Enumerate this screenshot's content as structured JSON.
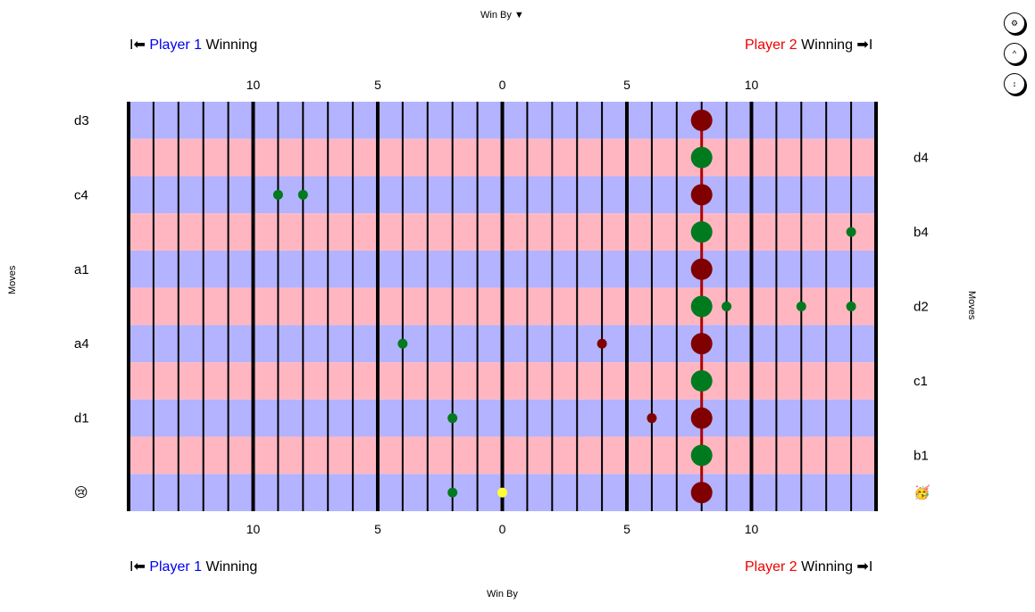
{
  "header": {
    "win_by_top": "Win By ▼",
    "win_by_bottom": "Win By"
  },
  "players": {
    "left_arrow": "I⬅",
    "right_arrow": "➡I",
    "p1_name": "Player 1",
    "p2_name": "Player 2",
    "winning": "Winning"
  },
  "controls": [
    {
      "name": "settings-button",
      "glyph": "⚙"
    },
    {
      "name": "collapse-button",
      "glyph": "^"
    },
    {
      "name": "expand-button",
      "glyph": "↕"
    }
  ],
  "axis": {
    "left_title": "Moves",
    "right_title": "Moves",
    "ticks": [
      {
        "value": -10,
        "label": "10"
      },
      {
        "value": -5,
        "label": "5"
      },
      {
        "value": 0,
        "label": "0"
      },
      {
        "value": 5,
        "label": "5"
      },
      {
        "value": 10,
        "label": "10"
      }
    ],
    "range": [
      -15,
      15
    ]
  },
  "rows": {
    "left_labels": [
      "d3",
      "",
      "c4",
      "",
      "a1",
      "",
      "a4",
      "",
      "d1",
      "",
      "😢"
    ],
    "right_labels": [
      "",
      "d4",
      "",
      "b4",
      "",
      "d2",
      "",
      "c1",
      "",
      "b1",
      "🥳"
    ]
  },
  "colors": {
    "row_p1": "#b3b3ff",
    "row_p2": "#ffb6c1",
    "dot_green": "#007a1f",
    "dot_red": "#800000",
    "dot_yellow": "#ffff33",
    "path": "#b00000"
  },
  "game_path": {
    "x": 8,
    "rows": [
      0,
      1,
      2,
      3,
      4,
      5,
      6,
      7,
      8,
      9,
      10
    ]
  },
  "dots": [
    {
      "row": 0,
      "x": 8,
      "color": "red",
      "size": "large"
    },
    {
      "row": 1,
      "x": 8,
      "color": "green",
      "size": "large"
    },
    {
      "row": 2,
      "x": 8,
      "color": "red",
      "size": "large"
    },
    {
      "row": 2,
      "x": -9,
      "color": "green",
      "size": "small"
    },
    {
      "row": 2,
      "x": -8,
      "color": "green",
      "size": "small"
    },
    {
      "row": 3,
      "x": 8,
      "color": "green",
      "size": "large"
    },
    {
      "row": 3,
      "x": 14,
      "color": "green",
      "size": "small"
    },
    {
      "row": 4,
      "x": 8,
      "color": "red",
      "size": "large"
    },
    {
      "row": 5,
      "x": 8,
      "color": "green",
      "size": "large"
    },
    {
      "row": 5,
      "x": 9,
      "color": "green",
      "size": "small"
    },
    {
      "row": 5,
      "x": 12,
      "color": "green",
      "size": "small"
    },
    {
      "row": 5,
      "x": 14,
      "color": "green",
      "size": "small"
    },
    {
      "row": 6,
      "x": 8,
      "color": "red",
      "size": "large"
    },
    {
      "row": 6,
      "x": -4,
      "color": "green",
      "size": "small"
    },
    {
      "row": 6,
      "x": 4,
      "color": "red",
      "size": "small"
    },
    {
      "row": 7,
      "x": 8,
      "color": "green",
      "size": "large"
    },
    {
      "row": 8,
      "x": 8,
      "color": "red",
      "size": "large"
    },
    {
      "row": 8,
      "x": -2,
      "color": "green",
      "size": "small"
    },
    {
      "row": 8,
      "x": 6,
      "color": "red",
      "size": "small"
    },
    {
      "row": 9,
      "x": 8,
      "color": "green",
      "size": "large"
    },
    {
      "row": 10,
      "x": 8,
      "color": "red",
      "size": "large"
    },
    {
      "row": 10,
      "x": -2,
      "color": "green",
      "size": "small"
    },
    {
      "row": 10,
      "x": 0,
      "color": "yellow",
      "size": "small"
    }
  ]
}
